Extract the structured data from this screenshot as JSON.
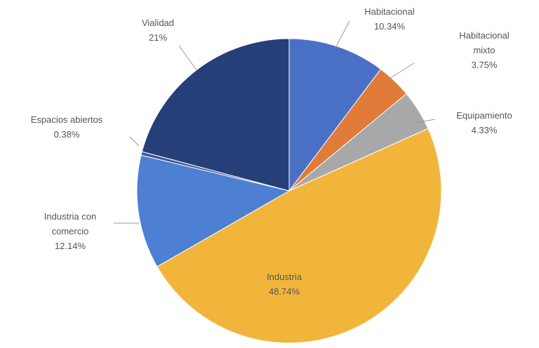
{
  "chart_data": {
    "type": "pie",
    "categories": [
      "Habitacional",
      "Habitacional mixto",
      "Equipamiento",
      "Industria",
      "Industria con comercio",
      "Espacios abiertos",
      "Vialidad"
    ],
    "values": [
      10.34,
      3.75,
      4.33,
      48.74,
      12.14,
      0.38,
      21
    ],
    "value_labels": [
      "10.34%",
      "3.75%",
      "4.33%",
      "48.74%",
      "12.14%",
      "0.38%",
      "21%"
    ],
    "colors": [
      "#4a70c6",
      "#e07b39",
      "#a8a8a8",
      "#f2b53c",
      "#4d7fd2",
      "#3a5a9a",
      "#263f78"
    ]
  }
}
